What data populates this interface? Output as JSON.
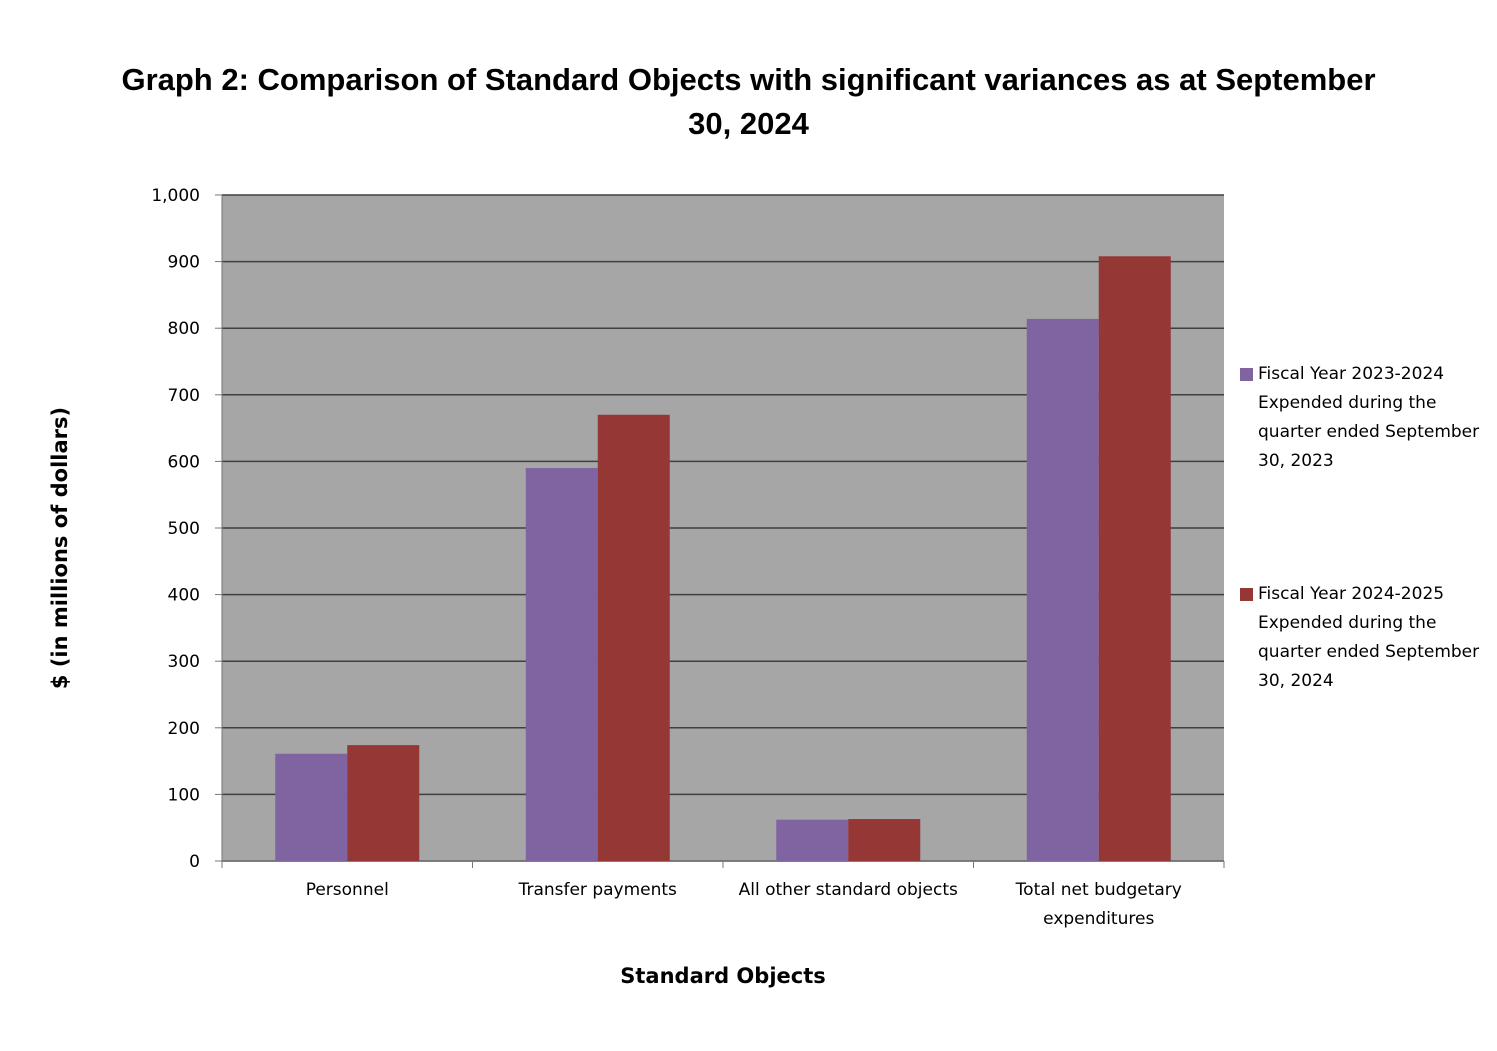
{
  "chart_data": {
    "type": "bar",
    "title": "Graph 2: Comparison of Standard Objects with significant variances as at September 30, 2024",
    "x_label": "Standard Objects",
    "y_label": "$ (in millions of  dollars)",
    "categories": [
      "Personnel",
      "Transfer payments",
      "All other standard objects",
      "Total net budgetary expenditures"
    ],
    "series": [
      {
        "name": "Fiscal Year 2023-2024 Expended during the quarter ended September 30, 2023",
        "color": "#8064a2",
        "values": [
          161,
          590,
          62,
          814
        ]
      },
      {
        "name": "Fiscal Year 2024-2025 Expended during the quarter ended September 30, 2024",
        "color": "#953735",
        "values": [
          174,
          670,
          63,
          908
        ]
      }
    ],
    "ylim": [
      0,
      1000
    ],
    "yticks": [
      0,
      100,
      200,
      300,
      400,
      500,
      600,
      700,
      800,
      900,
      {
        "value": 1000,
        "label": "1,000"
      }
    ],
    "grid": true,
    "legend": "right"
  }
}
